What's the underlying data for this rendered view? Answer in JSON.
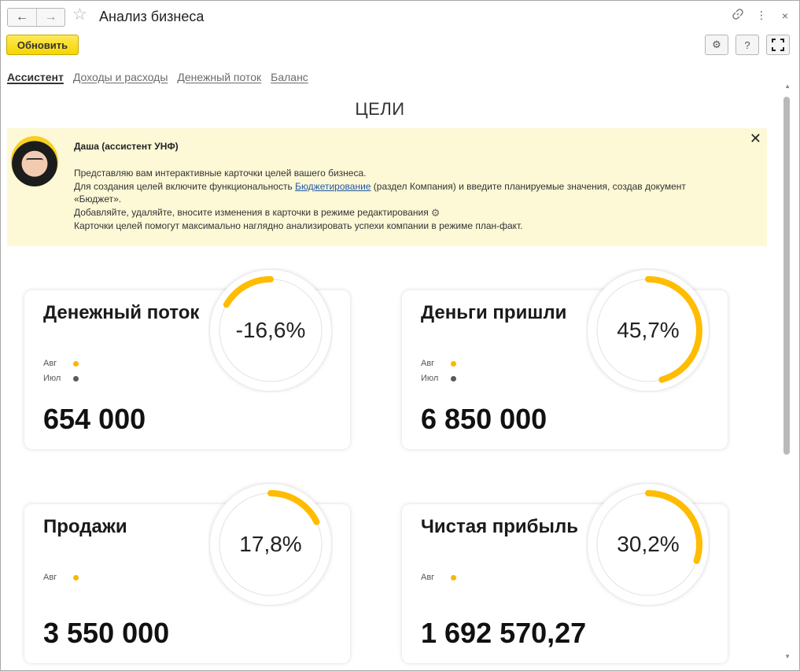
{
  "window": {
    "title": "Анализ бизнеса",
    "back_icon": "←",
    "forward_icon": "→",
    "star_icon": "☆",
    "link_icon": "🔗",
    "more_icon": "⋮",
    "close_icon": "×"
  },
  "toolbar": {
    "refresh_label": "Обновить",
    "settings_icon": "⚙",
    "help_label": "?",
    "fullscreen_icon": "⛶"
  },
  "tabs": [
    {
      "label": "Ассистент",
      "active": true
    },
    {
      "label": "Доходы и расходы",
      "active": false
    },
    {
      "label": "Денежный поток",
      "active": false
    },
    {
      "label": "Баланс",
      "active": false
    }
  ],
  "heading": "ЦЕЛИ",
  "assistant": {
    "name": "Даша (ассистент УНФ)",
    "line1": "Представляю вам интерактивные карточки целей вашего бизнеса.",
    "line2_before": "Для создания целей включите функциональность ",
    "line2_link": "Бюджетирование",
    "line2_after": " (раздел Компания) и введите планируемые значения, создав документ «Бюджет».",
    "line3": "Добавляйте, удаляйте, вносите изменения в карточки в режиме редактирования",
    "line4": "Карточки целей помогут максимально наглядно анализировать успехи компании в режиме план-факт.",
    "close_label": "✕"
  },
  "colors": {
    "accent": "#ffbc00",
    "ring_bg": "#e2e2e2",
    "dot_current": "#f7b900",
    "dot_prev": "#5a5a5a"
  },
  "cards": [
    {
      "title": "Денежный поток",
      "percent_label": "-16,6%",
      "percent": -16.6,
      "value": "654 000",
      "legend": [
        {
          "label": "Авг",
          "type": "current"
        },
        {
          "label": "Июл",
          "type": "prev"
        }
      ]
    },
    {
      "title": "Деньги пришли",
      "percent_label": "45,7%",
      "percent": 45.7,
      "value": "6 850 000",
      "legend": [
        {
          "label": "Авг",
          "type": "current"
        },
        {
          "label": "Июл",
          "type": "prev"
        }
      ]
    },
    {
      "title": "Продажи",
      "percent_label": "17,8%",
      "percent": 17.8,
      "value": "3 550 000",
      "legend": [
        {
          "label": "Авг",
          "type": "current"
        }
      ]
    },
    {
      "title": "Чистая прибыль",
      "percent_label": "30,2%",
      "percent": 30.2,
      "value": "1 692 570,27",
      "legend": [
        {
          "label": "Авг",
          "type": "current"
        }
      ]
    }
  ]
}
